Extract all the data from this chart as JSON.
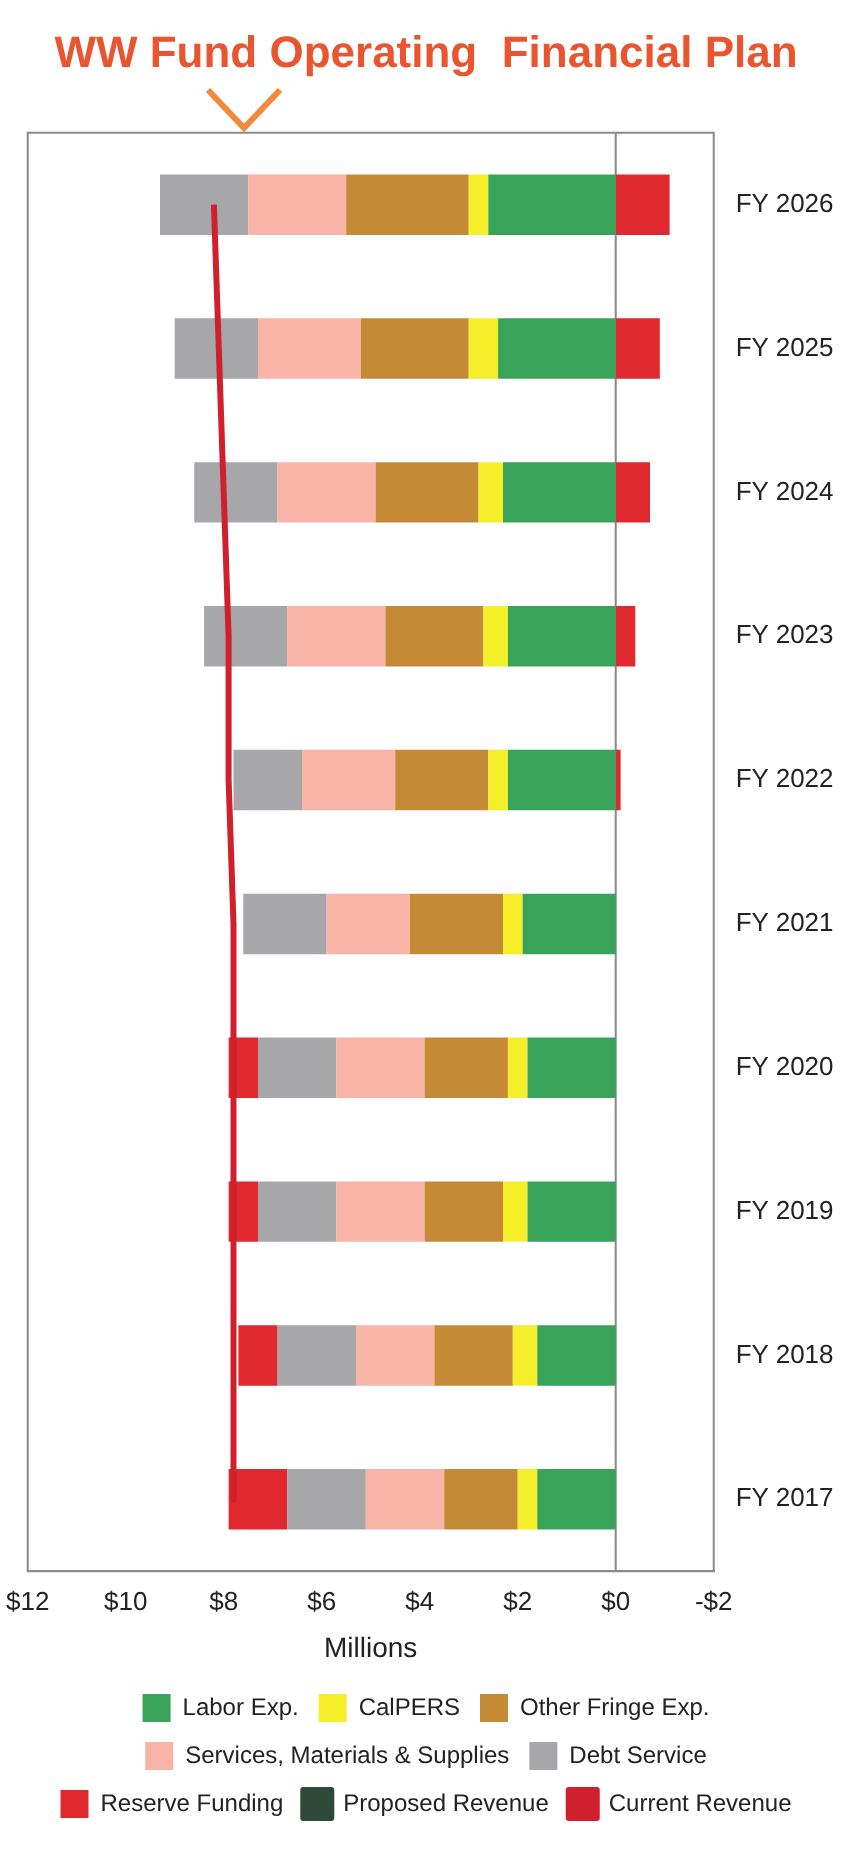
{
  "chart_data": {
    "type": "bar",
    "orientation": "horizontal",
    "stacked": true,
    "title": "WW Fund Operating  Financial Plan",
    "xlabel": "Millions",
    "categories": [
      "FY 2026",
      "FY 2025",
      "FY 2024",
      "FY 2023",
      "FY 2022",
      "FY 2021",
      "FY 2020",
      "FY 2019",
      "FY 2018",
      "FY 2017"
    ],
    "series": [
      {
        "name": "Labor Exp.",
        "color": "#3aa35a",
        "values": [
          2.6,
          2.4,
          2.3,
          2.2,
          2.2,
          1.9,
          1.8,
          1.8,
          1.6,
          1.6
        ]
      },
      {
        "name": "CalPERS",
        "color": "#f5ef2a",
        "values": [
          0.4,
          0.6,
          0.5,
          0.5,
          0.4,
          0.4,
          0.4,
          0.5,
          0.5,
          0.4
        ]
      },
      {
        "name": "Other Fringe Exp.",
        "color": "#c58a35",
        "values": [
          2.5,
          2.2,
          2.1,
          2.0,
          1.9,
          1.9,
          1.7,
          1.6,
          1.6,
          1.5
        ]
      },
      {
        "name": "Services, Materials & Supplies",
        "color": "#f9b4a8",
        "values": [
          2.0,
          2.1,
          2.0,
          2.0,
          1.9,
          1.7,
          1.8,
          1.8,
          1.6,
          1.6
        ]
      },
      {
        "name": "Debt Service",
        "color": "#a7a7aa",
        "values": [
          1.8,
          1.7,
          1.7,
          1.7,
          1.4,
          1.7,
          1.6,
          1.6,
          1.6,
          1.6
        ]
      },
      {
        "name": "Reserve Funding",
        "color": "#e0282f",
        "values": [
          -1.1,
          -0.9,
          -0.7,
          -0.4,
          -0.1,
          0,
          0.6,
          0.6,
          0.8,
          1.2
        ]
      },
      {
        "name": "Proposed Revenue",
        "type": "line",
        "color": "#2f4a3a",
        "values": [
          null,
          null,
          null,
          null,
          null,
          null,
          null,
          null,
          null,
          null
        ]
      },
      {
        "name": "Current Revenue",
        "type": "line",
        "color": "#d0202e",
        "values": [
          8.2,
          8.1,
          8.0,
          7.9,
          7.9,
          7.8,
          7.8,
          7.8,
          7.8,
          7.8
        ]
      }
    ],
    "xlim": [
      12,
      -2
    ],
    "xticks": [
      {
        "value": 12,
        "label": "$12"
      },
      {
        "value": 10,
        "label": "$10"
      },
      {
        "value": 8,
        "label": "$8"
      },
      {
        "value": 6,
        "label": "$6"
      },
      {
        "value": 4,
        "label": "$4"
      },
      {
        "value": 2,
        "label": "$2"
      },
      {
        "value": 0,
        "label": "$0"
      },
      {
        "value": -2,
        "label": "-$2"
      }
    ],
    "ref_lines": [
      {
        "axis": "x",
        "value": 0,
        "color": "#8a8a8a"
      }
    ],
    "grid": false,
    "legend": "bottom",
    "marker": "none",
    "line_style": "solid"
  }
}
